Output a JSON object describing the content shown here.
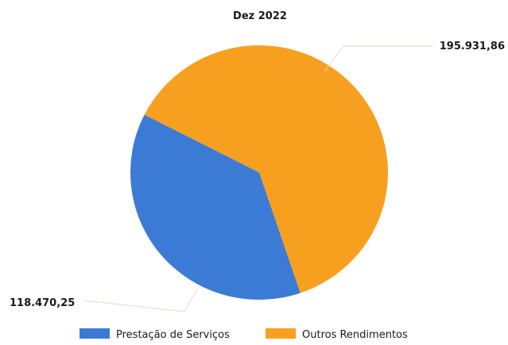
{
  "chart_data": {
    "type": "pie",
    "title": "Dez 2022",
    "series": [
      {
        "name": "Prestação de Serviços",
        "value": 118470.25,
        "label": "118.470,25",
        "color": "#3c7bd5"
      },
      {
        "name": "Outros Rendimentos",
        "value": 195931.86,
        "label": "195.931,86",
        "color": "#f7a020"
      }
    ],
    "legend_position": "bottom"
  }
}
